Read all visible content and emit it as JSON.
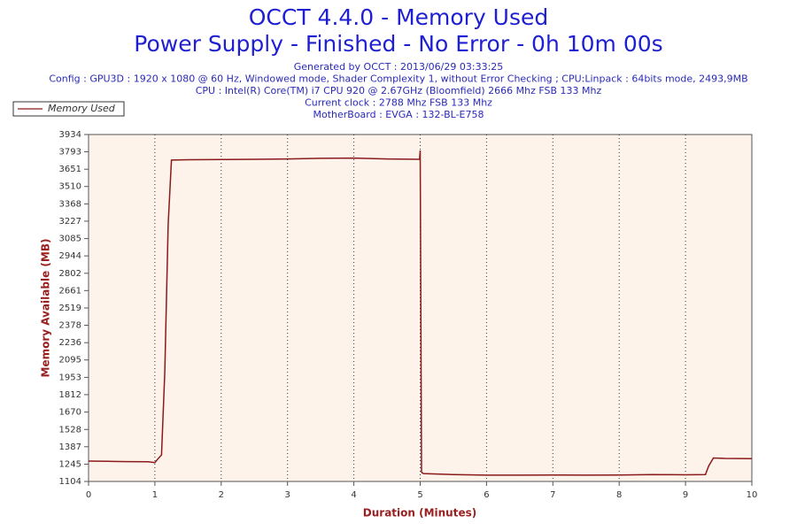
{
  "chart_data": {
    "type": "line",
    "title": "OCCT 4.4.0 - Memory Used",
    "subtitle": "Power Supply - Finished - No Error - 0h 10m 00s",
    "notes": [
      "Generated by OCCT : 2013/06/29 03:33:25",
      "Config : GPU3D : 1920 x 1080 @ 60 Hz, Windowed mode, Shader Complexity 1, without Error Checking ; CPU:Linpack : 64bits mode, 2493,9MB",
      "CPU : Intel(R) Core(TM) i7 CPU 920 @ 2.67GHz (Bloomfield) 2666 Mhz FSB 133 Mhz",
      "Current clock : 2788 Mhz FSB 133 Mhz",
      "MotherBoard : EVGA : 132-BL-E758"
    ],
    "xlabel": "Duration (Minutes)",
    "ylabel": "Memory Available (MB)",
    "xlim": [
      0,
      10
    ],
    "xticks": [
      0,
      1,
      2,
      3,
      4,
      5,
      6,
      7,
      8,
      9,
      10
    ],
    "ylim": [
      1104,
      3934
    ],
    "yticks": [
      1104,
      1245,
      1387,
      1528,
      1670,
      1812,
      1953,
      2095,
      2236,
      2378,
      2519,
      2661,
      2802,
      2944,
      3085,
      3227,
      3368,
      3510,
      3651,
      3793,
      3934
    ],
    "grid": true,
    "legend": "top-left",
    "x": [
      0,
      0.3,
      0.6,
      0.9,
      1.0,
      1.05,
      1.1,
      1.15,
      1.2,
      1.25,
      1.5,
      2,
      2.5,
      3,
      3.5,
      4,
      4.5,
      4.99,
      5.0,
      5.02,
      5.05,
      5.5,
      6,
      6.5,
      7,
      7.5,
      8,
      8.5,
      9,
      9.3,
      9.35,
      9.42,
      9.6,
      10
    ],
    "series": [
      {
        "name": "Memory Used",
        "color": "#8b1a1a",
        "values": [
          1270,
          1268,
          1266,
          1265,
          1258,
          1290,
          1320,
          2000,
          3200,
          3725,
          3728,
          3730,
          3732,
          3735,
          3740,
          3742,
          3735,
          3732,
          3804,
          1180,
          1168,
          1160,
          1155,
          1155,
          1157,
          1155,
          1156,
          1160,
          1158,
          1160,
          1230,
          1295,
          1292,
          1290
        ]
      }
    ]
  }
}
